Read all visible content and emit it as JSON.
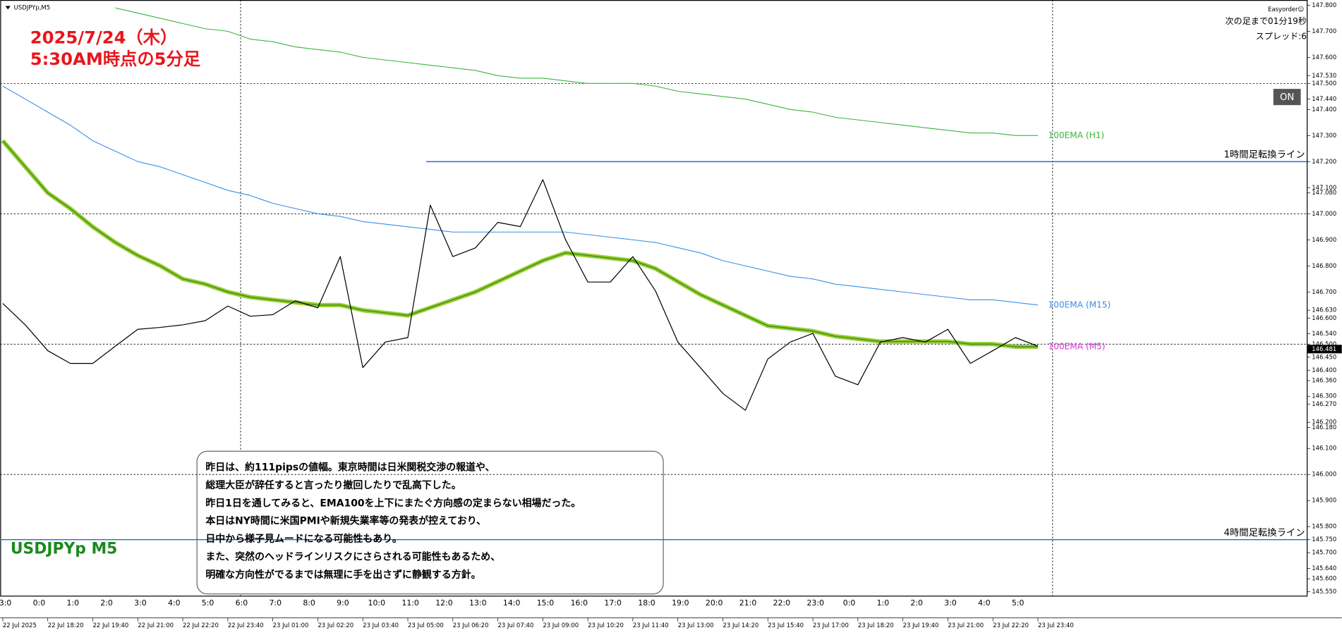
{
  "chart_data": {
    "type": "line",
    "symbol_label": "USDJPYp,M5",
    "title_lines": [
      "2025/7/24（木）",
      "5:30AM時点の5分足"
    ],
    "watermark": "USDJPYp M5",
    "panel": {
      "plugin": "Easyorder☺",
      "countdown": "次の足まで01分19秒",
      "spread": "スプレッド:6",
      "button": "ON"
    },
    "note": [
      "昨日は、約111pipsの値幅。東京時間は日米関税交渉の報道や、",
      "総理大臣が辞任すると言ったり撤回したりで乱高下した。",
      "昨日1日を通してみると、EMA100を上下にまたぐ方向感の定まらない相場だった。",
      "本日はNY時間に米国PMIや新規失業率等の発表が控えており、",
      "日中から様子見ムードになる可能性もあり。",
      "また、突然のヘッドラインリスクにさらされる可能性もあるため、",
      "明確な方向性がでるまでは無理に手を出さずに静観する方針。"
    ],
    "session_labels": [
      "3:0",
      "0:0",
      "1:0",
      "2:0",
      "3:0",
      "4:0",
      "5:0",
      "6:0",
      "7:0",
      "8:0",
      "9:0",
      "10:0",
      "11:0",
      "12:0",
      "13:0",
      "14:0",
      "15:0",
      "16:0",
      "17:0",
      "18:0",
      "19:0",
      "20:0",
      "21:0",
      "22:0",
      "23:0",
      "0:0",
      "1:0",
      "2:0",
      "3:0",
      "4:0",
      "5:0"
    ],
    "categories": [
      "22 Jul 2025",
      null,
      "22 Jul 18:20",
      null,
      "22 Jul 19:40",
      null,
      "22 Jul 21:00",
      null,
      "22 Jul 22:20",
      null,
      "22 Jul 23:40",
      null,
      "23 Jul 01:00",
      null,
      "23 Jul 02:20",
      null,
      "23 Jul 03:40",
      null,
      "23 Jul 05:00",
      null,
      "23 Jul 06:20",
      null,
      "23 Jul 07:40",
      null,
      "23 Jul 09:00",
      null,
      "23 Jul 10:20",
      null,
      "23 Jul 11:40",
      null,
      "23 Jul 13:00",
      null,
      "23 Jul 14:20",
      null,
      "23 Jul 15:40",
      null,
      "23 Jul 17:00",
      null,
      "23 Jul 18:20",
      null,
      "23 Jul 19:40",
      null,
      "23 Jul 21:00",
      null,
      "23 Jul 22:20",
      null,
      "23 Jul 23:40"
    ],
    "series": [
      {
        "name": "USDJPYp,M5",
        "color": "#000000",
        "values": [
          146.656,
          146.574,
          146.475,
          146.426,
          146.426,
          146.492,
          146.557,
          146.564,
          146.574,
          146.59,
          146.646,
          146.607,
          146.613,
          146.666,
          146.639,
          146.836,
          146.41,
          146.508,
          146.525,
          147.033,
          146.836,
          146.869,
          146.967,
          146.951,
          147.131,
          146.902,
          146.738,
          146.738,
          146.836,
          146.705,
          146.508,
          146.41,
          146.311,
          146.246,
          146.443,
          146.508,
          146.541,
          146.377,
          146.344,
          146.508,
          146.525,
          146.508,
          146.557,
          146.426,
          146.475,
          146.525,
          146.492
        ]
      },
      {
        "name": "100EMA (H1)",
        "color": "#3cb43c",
        "values": [
          null,
          null,
          null,
          null,
          null,
          147.79,
          147.77,
          147.75,
          147.73,
          147.71,
          147.7,
          147.67,
          147.66,
          147.64,
          147.63,
          147.62,
          147.6,
          147.59,
          147.58,
          147.57,
          147.56,
          147.55,
          147.53,
          147.52,
          147.52,
          147.51,
          147.5,
          147.5,
          147.5,
          147.49,
          147.47,
          147.46,
          147.45,
          147.44,
          147.42,
          147.4,
          147.39,
          147.37,
          147.36,
          147.35,
          147.34,
          147.33,
          147.32,
          147.31,
          147.31,
          147.3,
          147.3
        ]
      },
      {
        "name": "100EMA (M15)",
        "color": "#3a8fe8",
        "values": [
          147.49,
          147.44,
          147.39,
          147.34,
          147.28,
          147.24,
          147.2,
          147.18,
          147.15,
          147.12,
          147.09,
          147.07,
          147.04,
          147.02,
          147.0,
          146.99,
          146.97,
          146.96,
          146.95,
          146.94,
          146.93,
          146.93,
          146.93,
          146.93,
          146.93,
          146.93,
          146.92,
          146.91,
          146.9,
          146.89,
          146.87,
          146.85,
          146.82,
          146.8,
          146.78,
          146.76,
          146.75,
          146.73,
          146.72,
          146.71,
          146.7,
          146.69,
          146.68,
          146.67,
          146.67,
          146.66,
          146.65
        ]
      },
      {
        "name": "100EMA (M5)",
        "color": "#e030e0",
        "values": [
          147.28,
          147.18,
          147.08,
          147.02,
          146.95,
          146.89,
          146.84,
          146.8,
          146.75,
          146.73,
          146.7,
          146.68,
          146.67,
          146.66,
          146.65,
          146.65,
          146.63,
          146.62,
          146.61,
          146.64,
          146.67,
          146.7,
          146.74,
          146.78,
          146.82,
          146.85,
          146.84,
          146.83,
          146.82,
          146.79,
          146.74,
          146.69,
          146.65,
          146.61,
          146.57,
          146.56,
          146.55,
          146.53,
          146.52,
          146.51,
          146.51,
          146.51,
          146.51,
          146.5,
          146.5,
          146.49,
          146.49
        ]
      }
    ],
    "levels": [
      {
        "name": "1時間足転換ライン",
        "value": 147.2,
        "color": "#1f6fd0"
      },
      {
        "name": "4時間足転換ライン",
        "value": 145.75,
        "color": "#1f6fd0"
      }
    ],
    "current_price": 146.481,
    "ylim": [
      145.535,
      147.82
    ],
    "yticks": [
      {
        "value": 147.8,
        "label": "147.800"
      },
      {
        "value": 147.7,
        "label": "147.700"
      },
      {
        "value": 147.6,
        "label": "147.600"
      },
      {
        "value": 147.53,
        "label": "147.530"
      },
      {
        "value": 147.5,
        "label": "147.500"
      },
      {
        "value": 147.44,
        "label": "147.440"
      },
      {
        "value": 147.4,
        "label": "147.400"
      },
      {
        "value": 147.3,
        "label": "147.300"
      },
      {
        "value": 147.2,
        "label": "147.200"
      },
      {
        "value": 147.1,
        "label": "147.100"
      },
      {
        "value": 147.08,
        "label": "147.080"
      },
      {
        "value": 147.0,
        "label": "147.000"
      },
      {
        "value": 146.9,
        "label": "146.900"
      },
      {
        "value": 146.8,
        "label": "146.800"
      },
      {
        "value": 146.7,
        "label": "146.700"
      },
      {
        "value": 146.63,
        "label": "146.630"
      },
      {
        "value": 146.6,
        "label": "146.600"
      },
      {
        "value": 146.54,
        "label": "146.540"
      },
      {
        "value": 146.5,
        "label": "146.500"
      },
      {
        "value": 146.45,
        "label": "146.450"
      },
      {
        "value": 146.4,
        "label": "146.400"
      },
      {
        "value": 146.36,
        "label": "146.360"
      },
      {
        "value": 146.3,
        "label": "146.300"
      },
      {
        "value": 146.27,
        "label": "146.270"
      },
      {
        "value": 146.2,
        "label": "146.200"
      },
      {
        "value": 146.18,
        "label": "146.180"
      },
      {
        "value": 146.1,
        "label": "146.100"
      },
      {
        "value": 146.0,
        "label": "146.000"
      },
      {
        "value": 145.9,
        "label": "145.900"
      },
      {
        "value": 145.8,
        "label": "145.800"
      },
      {
        "value": 145.75,
        "label": "145.750"
      },
      {
        "value": 145.7,
        "label": "145.700"
      },
      {
        "value": 145.64,
        "label": "145.640"
      },
      {
        "value": 145.6,
        "label": "145.600"
      },
      {
        "value": 145.55,
        "label": "145.550"
      }
    ]
  }
}
